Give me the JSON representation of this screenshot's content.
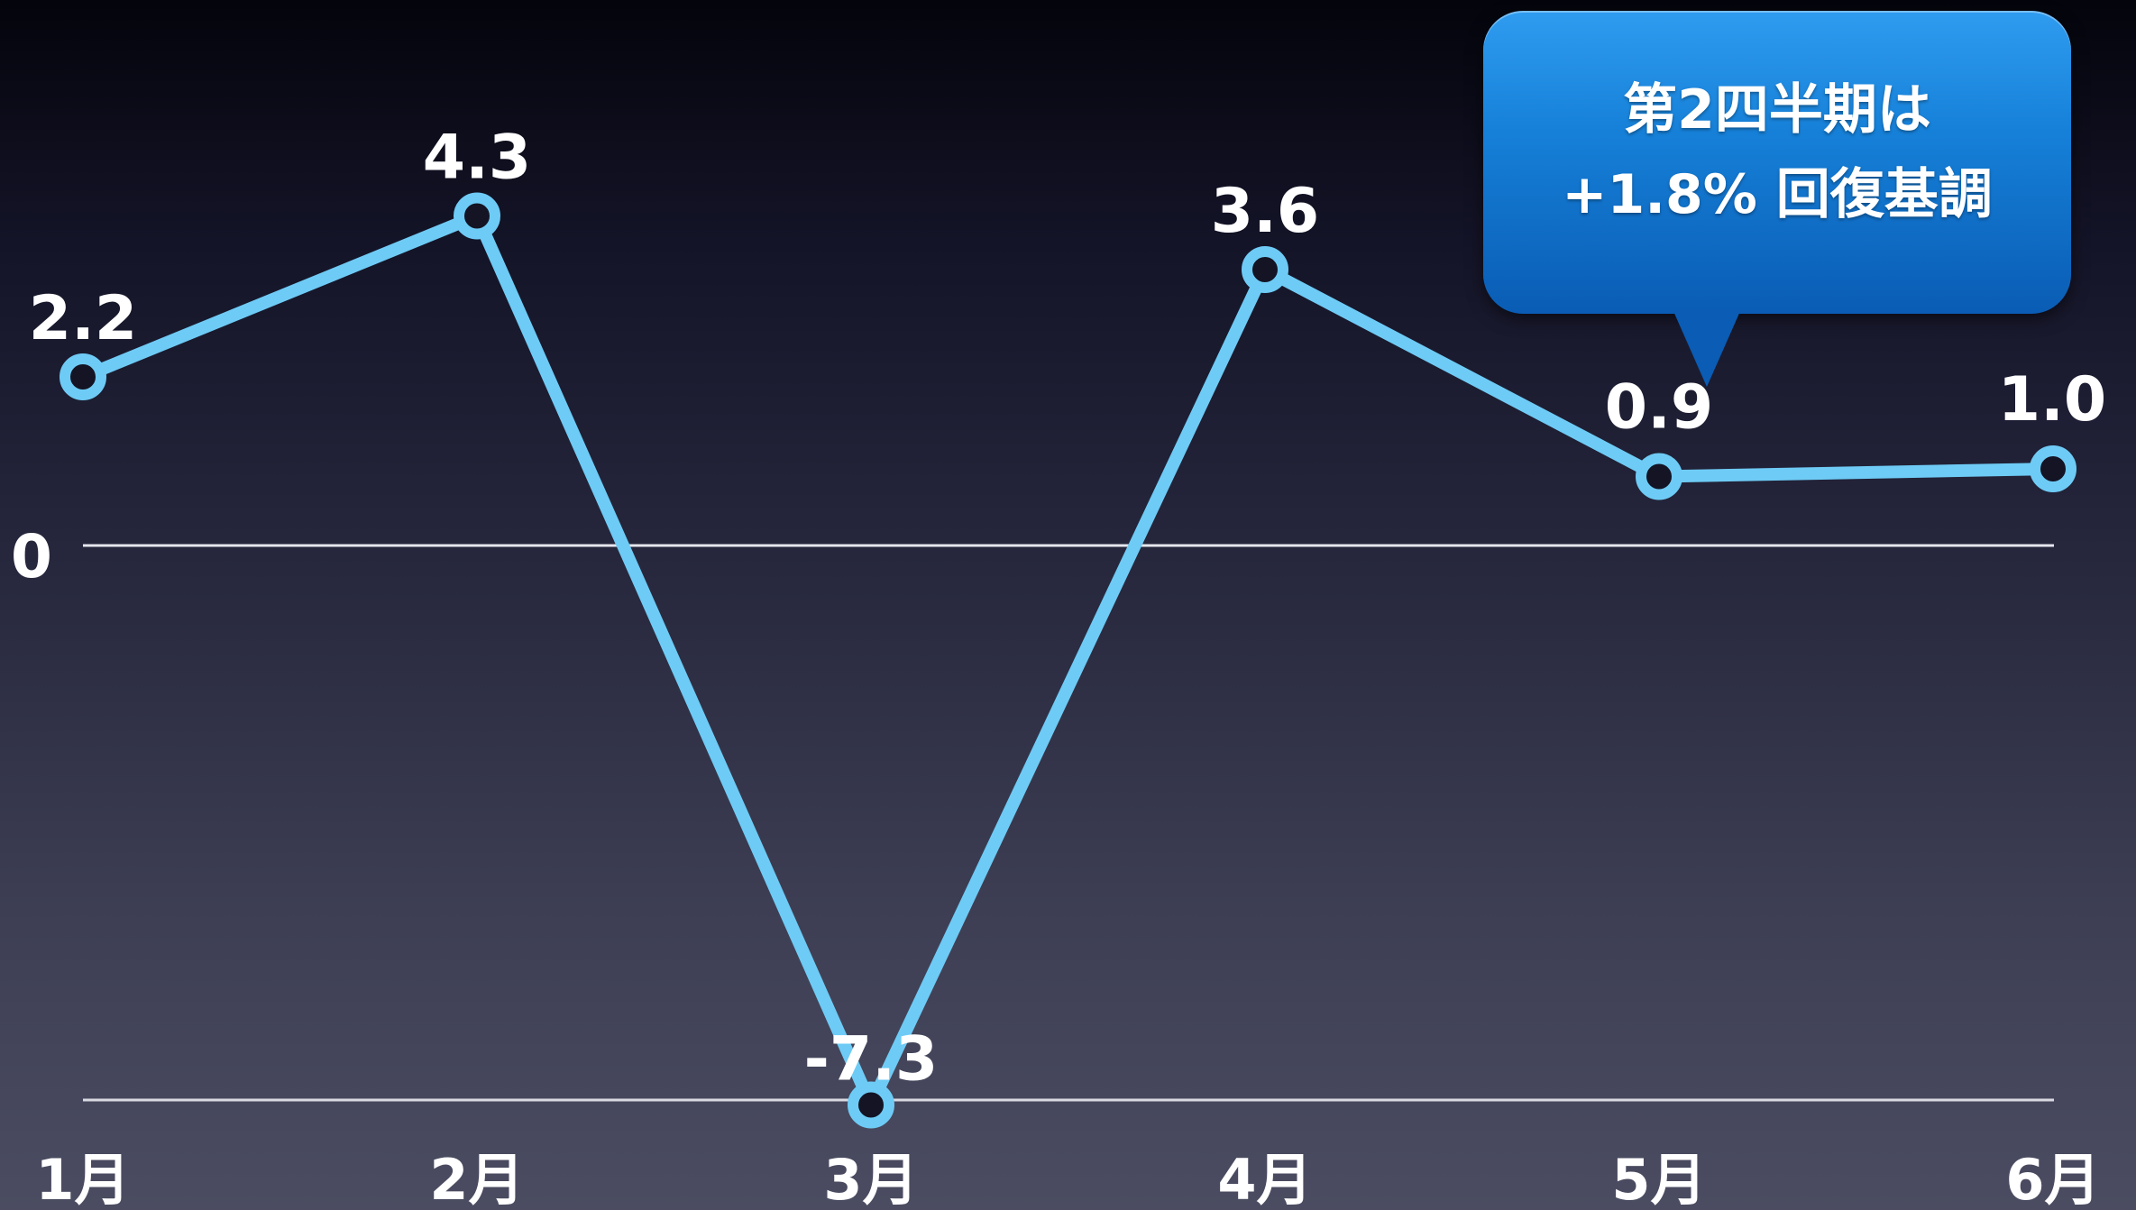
{
  "chart_data": {
    "type": "line",
    "categories": [
      "1月",
      "2月",
      "3月",
      "4月",
      "5月",
      "6月"
    ],
    "series": [
      {
        "values": [
          2.2,
          4.3,
          -7.3,
          3.6,
          0.9,
          1.0
        ],
        "labels": [
          "2.2",
          "4.3",
          "-7.3",
          "3.6",
          "0.9",
          "1.0"
        ]
      }
    ],
    "zero_label": "0",
    "ylim": [
      -10,
      10
    ],
    "grid": false,
    "line_color": "#6ecbf5",
    "marker_fill": "#141424",
    "annotation": {
      "lines": [
        "第2四半期は",
        "+1.8% 回復基調"
      ],
      "points_to": "5月",
      "background": "#1a84dc"
    }
  }
}
